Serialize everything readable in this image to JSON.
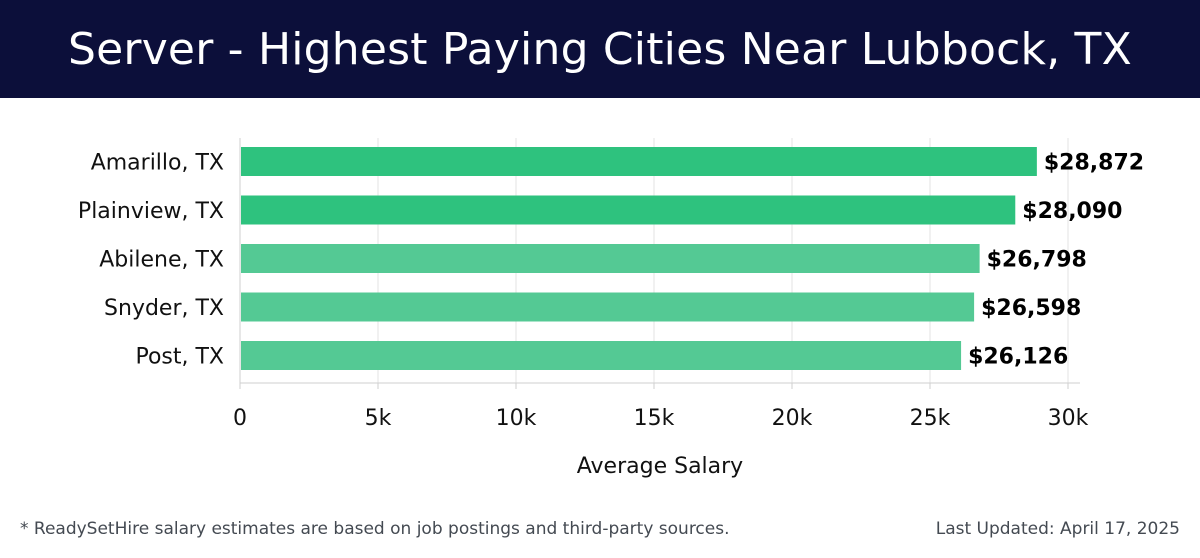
{
  "header": {
    "title": "Server - Highest Paying Cities Near Lubbock, TX"
  },
  "colors": {
    "header_bg": "#0c0f3a",
    "bar_top": "#2ec27e",
    "bar_light": "#54c994"
  },
  "chart_data": {
    "type": "bar",
    "orientation": "horizontal",
    "categories": [
      "Amarillo, TX",
      "Plainview, TX",
      "Abilene, TX",
      "Snyder, TX",
      "Post, TX"
    ],
    "values": [
      28872,
      28090,
      26798,
      26598,
      26126
    ],
    "value_labels": [
      "$28,872",
      "$28,090",
      "$26,798",
      "$26,598",
      "$26,126"
    ],
    "xlabel": "Average Salary",
    "xlim": [
      0,
      30000
    ],
    "ticks": [
      0,
      5000,
      10000,
      15000,
      20000,
      25000,
      30000
    ],
    "tick_labels": [
      "0",
      "5k",
      "10k",
      "15k",
      "20k",
      "25k",
      "30k"
    ],
    "grid": true
  },
  "footer": {
    "note": "* ReadySetHire salary estimates are based on job postings and third-party sources.",
    "updated": "Last Updated: April 17, 2025"
  }
}
